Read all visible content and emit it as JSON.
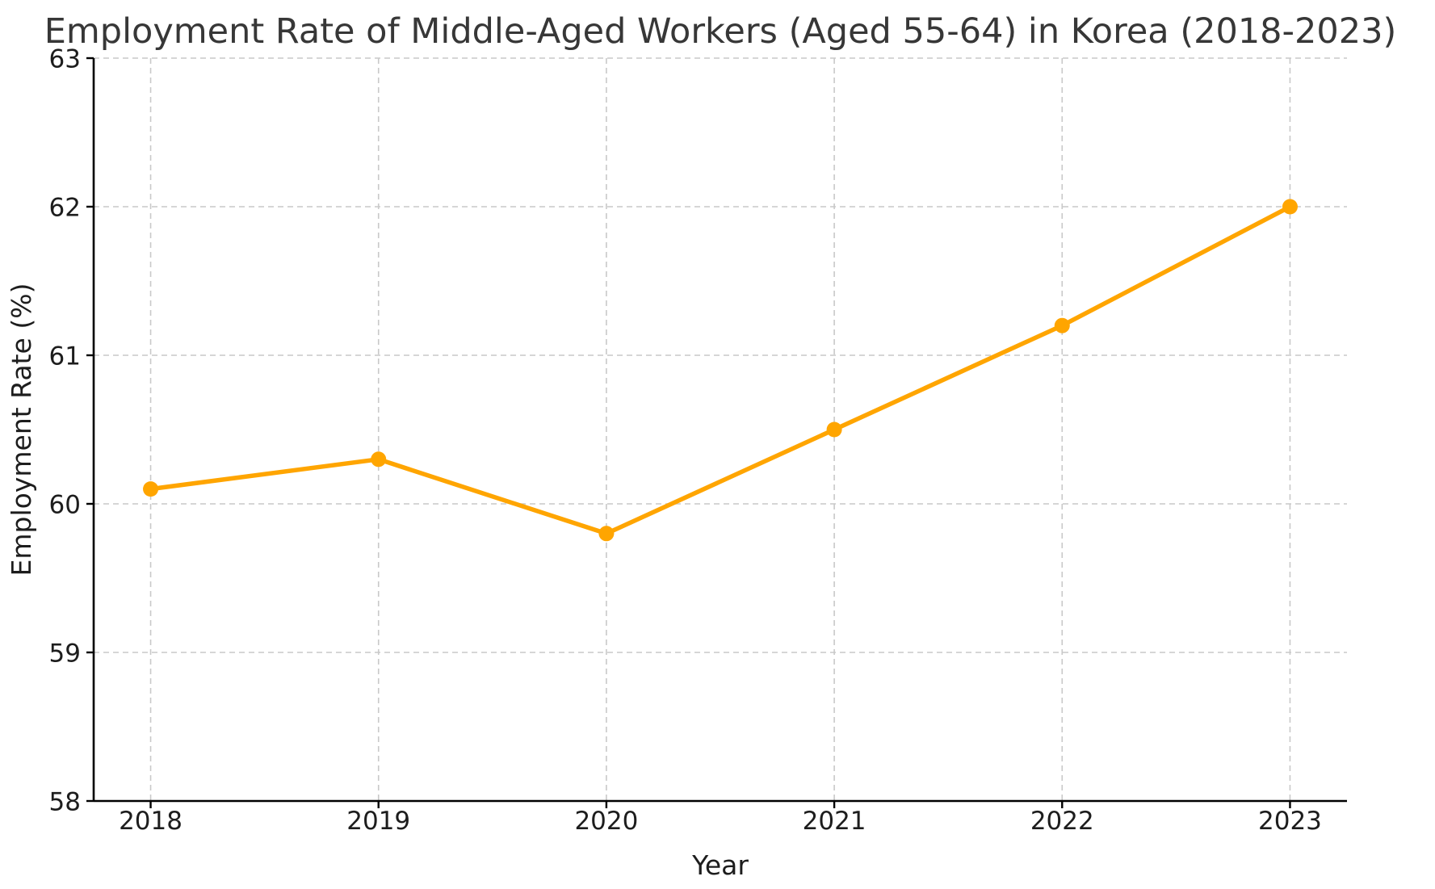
{
  "chart_data": {
    "type": "line",
    "title": "Employment Rate of Middle-Aged Workers (Aged 55-64) in Korea (2018-2023)",
    "xlabel": "Year",
    "ylabel": "Employment Rate (%)",
    "categories": [
      "2018",
      "2019",
      "2020",
      "2021",
      "2022",
      "2023"
    ],
    "series": [
      {
        "name": "Employment Rate",
        "values": [
          60.1,
          60.3,
          59.8,
          60.5,
          61.2,
          62.0
        ]
      }
    ],
    "ylim": [
      58,
      63
    ],
    "yticks": [
      58,
      59,
      60,
      61,
      62,
      63
    ],
    "x_margin_fraction": 0.05,
    "grid": true,
    "grid_style": "dashed",
    "legend": false,
    "marker": "circle",
    "colors": {
      "line": "#FFA500",
      "marker": "#FFA500",
      "grid": "#c9c9c9",
      "axis": "#000000",
      "tick_text": "#1d1d1d",
      "title_text": "#373737",
      "background": "#ffffff"
    }
  }
}
